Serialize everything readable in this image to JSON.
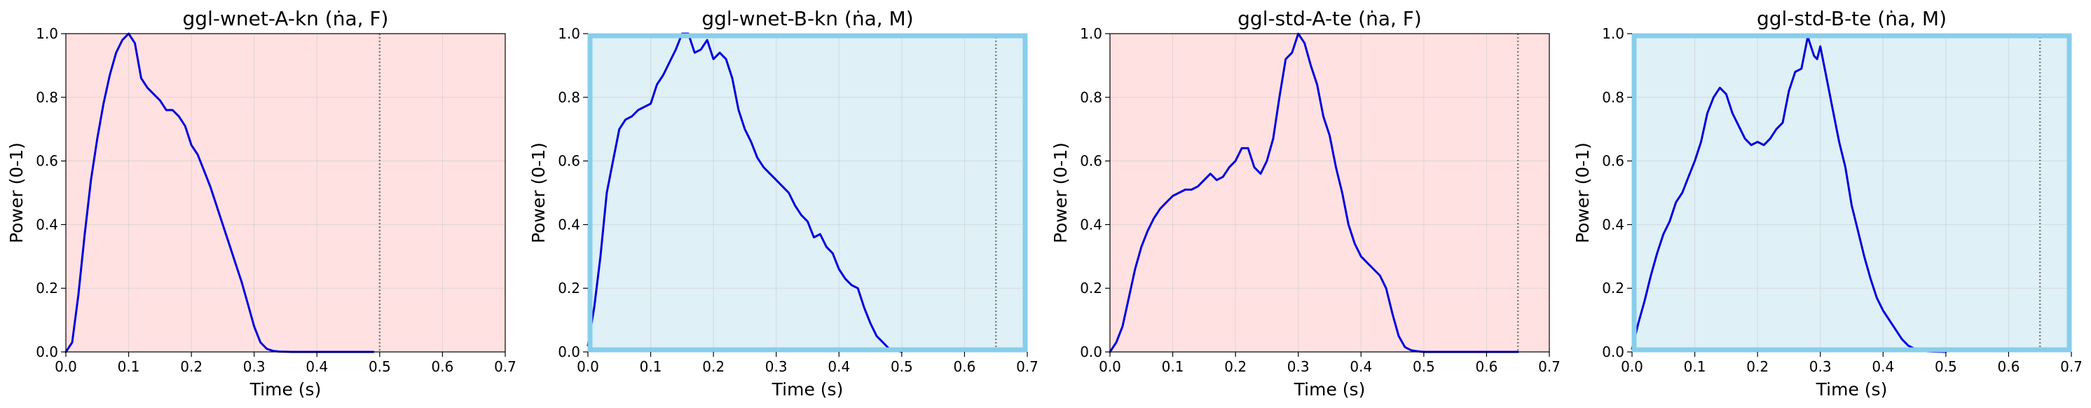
{
  "chart_data": [
    {
      "type": "line",
      "title": "ggl-wnet-A-kn (ṅa, F)",
      "xlabel": "Time (s)",
      "ylabel": "Power (0-1)",
      "xlim": [
        0,
        0.7
      ],
      "ylim": [
        0,
        1.0
      ],
      "xticks": [
        "0.0",
        "0.1",
        "0.2",
        "0.3",
        "0.4",
        "0.5",
        "0.6",
        "0.7"
      ],
      "yticks": [
        "0.0",
        "0.2",
        "0.4",
        "0.6",
        "0.8",
        "1.0"
      ],
      "grid": true,
      "background_color": "#ffe1e1",
      "frame_color": "#000000",
      "highlighted_frame": false,
      "line_color": "#0000dd",
      "vline_x": 0.5,
      "series": [
        {
          "x": [
            0.0,
            0.01,
            0.02,
            0.03,
            0.04,
            0.05,
            0.06,
            0.07,
            0.08,
            0.09,
            0.1,
            0.11,
            0.12,
            0.13,
            0.14,
            0.15,
            0.16,
            0.17,
            0.18,
            0.19,
            0.2,
            0.21,
            0.22,
            0.23,
            0.24,
            0.25,
            0.26,
            0.27,
            0.28,
            0.29,
            0.3,
            0.31,
            0.32,
            0.33,
            0.34,
            0.36,
            0.4,
            0.45,
            0.49
          ],
          "y": [
            0.0,
            0.03,
            0.18,
            0.37,
            0.54,
            0.67,
            0.78,
            0.87,
            0.94,
            0.98,
            1.0,
            0.97,
            0.86,
            0.83,
            0.81,
            0.79,
            0.76,
            0.76,
            0.74,
            0.71,
            0.65,
            0.62,
            0.57,
            0.52,
            0.46,
            0.4,
            0.34,
            0.28,
            0.22,
            0.15,
            0.08,
            0.03,
            0.01,
            0.003,
            0.001,
            0.0,
            0.0,
            0.0,
            0.0
          ]
        }
      ]
    },
    {
      "type": "line",
      "title": "ggl-wnet-B-kn (ṅa, M)",
      "xlabel": "Time (s)",
      "ylabel": "Power (0-1)",
      "xlim": [
        0,
        0.7
      ],
      "ylim": [
        0,
        1.0
      ],
      "xticks": [
        "0.0",
        "0.1",
        "0.2",
        "0.3",
        "0.4",
        "0.5",
        "0.6",
        "0.7"
      ],
      "yticks": [
        "0.0",
        "0.2",
        "0.4",
        "0.6",
        "0.8",
        "1.0"
      ],
      "grid": true,
      "background_color": "#dff0f7",
      "frame_color": "#87ceeb",
      "highlighted_frame": true,
      "line_color": "#0000dd",
      "vline_x": 0.65,
      "series": [
        {
          "x": [
            0.0,
            0.01,
            0.02,
            0.03,
            0.04,
            0.05,
            0.06,
            0.07,
            0.08,
            0.09,
            0.1,
            0.11,
            0.12,
            0.13,
            0.14,
            0.15,
            0.16,
            0.17,
            0.18,
            0.19,
            0.2,
            0.21,
            0.22,
            0.23,
            0.24,
            0.25,
            0.26,
            0.27,
            0.28,
            0.29,
            0.3,
            0.31,
            0.32,
            0.33,
            0.34,
            0.35,
            0.36,
            0.37,
            0.38,
            0.39,
            0.4,
            0.41,
            0.42,
            0.43,
            0.44,
            0.45,
            0.46,
            0.47,
            0.48,
            0.5
          ],
          "y": [
            0.02,
            0.14,
            0.3,
            0.5,
            0.6,
            0.7,
            0.73,
            0.74,
            0.76,
            0.77,
            0.78,
            0.84,
            0.87,
            0.91,
            0.95,
            1.0,
            1.0,
            0.94,
            0.95,
            0.98,
            0.92,
            0.94,
            0.92,
            0.86,
            0.76,
            0.7,
            0.66,
            0.61,
            0.58,
            0.56,
            0.54,
            0.52,
            0.5,
            0.46,
            0.43,
            0.41,
            0.36,
            0.37,
            0.33,
            0.31,
            0.26,
            0.23,
            0.21,
            0.2,
            0.14,
            0.09,
            0.05,
            0.03,
            0.01,
            0.0
          ]
        }
      ]
    },
    {
      "type": "line",
      "title": "ggl-std-A-te (ṅa, F)",
      "xlabel": "Time (s)",
      "ylabel": "Power (0-1)",
      "xlim": [
        0,
        0.7
      ],
      "ylim": [
        0,
        1.0
      ],
      "xticks": [
        "0.0",
        "0.1",
        "0.2",
        "0.3",
        "0.4",
        "0.5",
        "0.6",
        "0.7"
      ],
      "yticks": [
        "0.0",
        "0.2",
        "0.4",
        "0.6",
        "0.8",
        "1.0"
      ],
      "grid": true,
      "background_color": "#ffe1e1",
      "frame_color": "#000000",
      "highlighted_frame": false,
      "line_color": "#0000dd",
      "vline_x": 0.65,
      "series": [
        {
          "x": [
            0.0,
            0.01,
            0.02,
            0.03,
            0.04,
            0.05,
            0.06,
            0.07,
            0.08,
            0.09,
            0.1,
            0.11,
            0.12,
            0.13,
            0.14,
            0.15,
            0.16,
            0.17,
            0.18,
            0.19,
            0.2,
            0.21,
            0.22,
            0.23,
            0.24,
            0.25,
            0.26,
            0.27,
            0.28,
            0.29,
            0.3,
            0.31,
            0.32,
            0.33,
            0.34,
            0.35,
            0.36,
            0.37,
            0.38,
            0.39,
            0.4,
            0.41,
            0.42,
            0.43,
            0.44,
            0.45,
            0.46,
            0.47,
            0.48,
            0.49,
            0.5,
            0.55,
            0.6,
            0.65
          ],
          "y": [
            0.0,
            0.03,
            0.08,
            0.17,
            0.26,
            0.33,
            0.38,
            0.42,
            0.45,
            0.47,
            0.49,
            0.5,
            0.51,
            0.51,
            0.52,
            0.54,
            0.56,
            0.54,
            0.55,
            0.58,
            0.6,
            0.64,
            0.64,
            0.58,
            0.56,
            0.6,
            0.67,
            0.8,
            0.92,
            0.94,
            1.0,
            0.97,
            0.9,
            0.84,
            0.74,
            0.68,
            0.58,
            0.5,
            0.4,
            0.34,
            0.3,
            0.28,
            0.26,
            0.24,
            0.2,
            0.12,
            0.05,
            0.015,
            0.005,
            0.002,
            0.0,
            0.0,
            0.0,
            0.0
          ]
        }
      ]
    },
    {
      "type": "line",
      "title": "ggl-std-B-te (ṅa, M)",
      "xlabel": "Time (s)",
      "ylabel": "Power (0-1)",
      "xlim": [
        0,
        0.7
      ],
      "ylim": [
        0,
        1.0
      ],
      "xticks": [
        "0.0",
        "0.1",
        "0.2",
        "0.3",
        "0.4",
        "0.5",
        "0.6",
        "0.7"
      ],
      "yticks": [
        "0.0",
        "0.2",
        "0.4",
        "0.6",
        "0.8",
        "1.0"
      ],
      "grid": true,
      "background_color": "#dff0f7",
      "frame_color": "#87ceeb",
      "highlighted_frame": true,
      "line_color": "#0000dd",
      "vline_x": 0.65,
      "series": [
        {
          "x": [
            0.0,
            0.01,
            0.02,
            0.03,
            0.04,
            0.05,
            0.06,
            0.07,
            0.08,
            0.09,
            0.1,
            0.11,
            0.12,
            0.13,
            0.14,
            0.15,
            0.16,
            0.17,
            0.18,
            0.19,
            0.2,
            0.21,
            0.22,
            0.23,
            0.24,
            0.25,
            0.26,
            0.27,
            0.28,
            0.29,
            0.295,
            0.3,
            0.31,
            0.32,
            0.33,
            0.34,
            0.35,
            0.36,
            0.37,
            0.38,
            0.39,
            0.4,
            0.41,
            0.42,
            0.43,
            0.44,
            0.45,
            0.46,
            0.47,
            0.48,
            0.5
          ],
          "y": [
            0.01,
            0.09,
            0.16,
            0.24,
            0.31,
            0.37,
            0.41,
            0.47,
            0.5,
            0.55,
            0.6,
            0.66,
            0.75,
            0.8,
            0.83,
            0.81,
            0.75,
            0.71,
            0.67,
            0.65,
            0.66,
            0.65,
            0.67,
            0.7,
            0.72,
            0.82,
            0.88,
            0.89,
            0.99,
            0.93,
            0.92,
            0.96,
            0.86,
            0.76,
            0.66,
            0.58,
            0.46,
            0.38,
            0.3,
            0.23,
            0.17,
            0.13,
            0.1,
            0.07,
            0.04,
            0.02,
            0.01,
            0.005,
            0.002,
            0.001,
            0.0
          ]
        }
      ]
    }
  ]
}
